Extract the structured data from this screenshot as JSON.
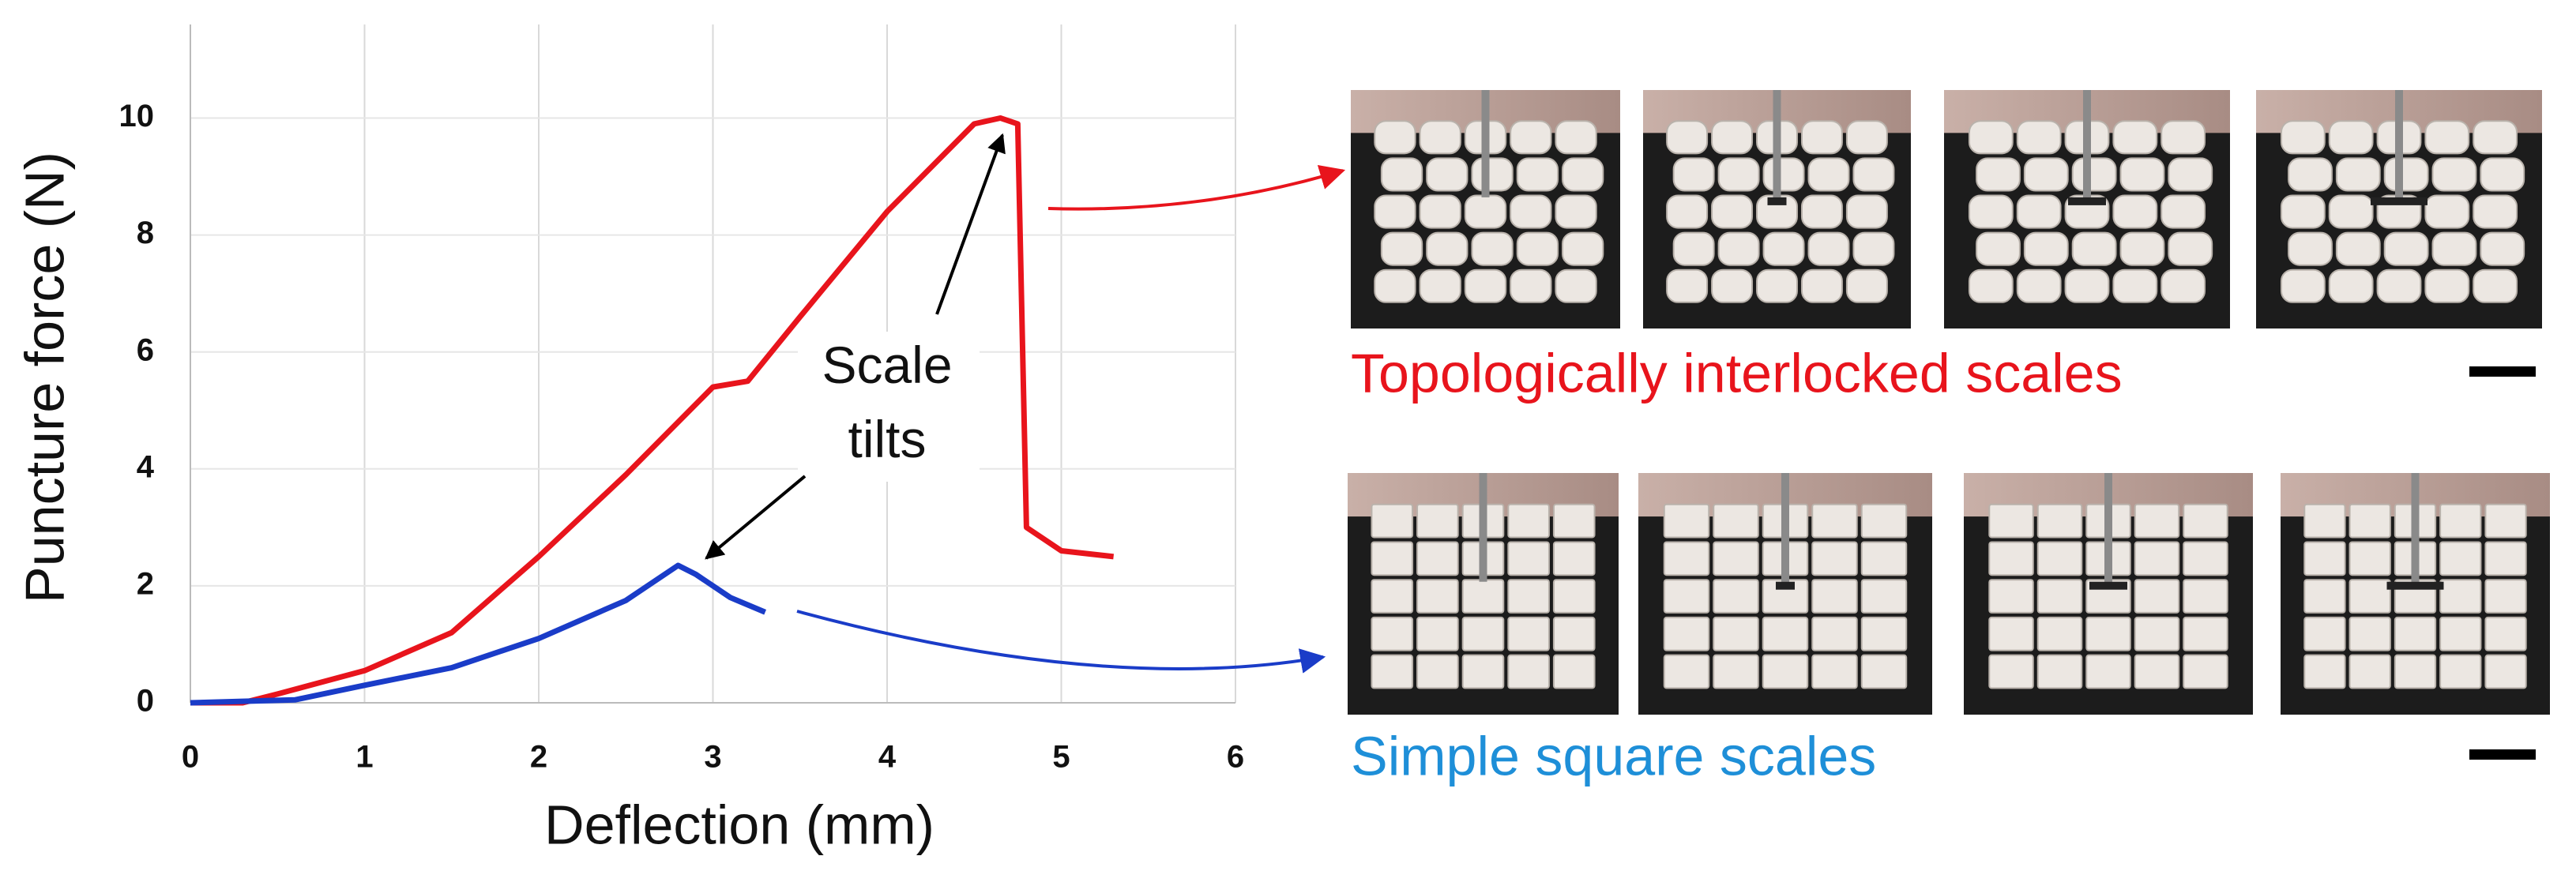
{
  "chart_data": {
    "type": "line",
    "xlabel": "Deflection (mm)",
    "ylabel": "Puncture force (N)",
    "annotation": "Scale tilts",
    "xlim": [
      0,
      6
    ],
    "ylim": [
      0,
      11.6
    ],
    "xticks": [
      0,
      1,
      2,
      3,
      4,
      5,
      6
    ],
    "yticks": [
      0,
      2,
      4,
      6,
      8,
      10
    ],
    "grid": true,
    "series": [
      {
        "name": "Topologically interlocked scales",
        "color": "#e8141c",
        "x": [
          0,
          0.3,
          0.5,
          1,
          1.5,
          2,
          2.5,
          3,
          3.2,
          3.5,
          4,
          4.5,
          4.65,
          4.75,
          4.8,
          5,
          5.3
        ],
        "values": [
          0,
          0,
          0.15,
          0.55,
          1.2,
          2.5,
          3.9,
          5.4,
          5.5,
          6.6,
          8.4,
          9.9,
          10,
          9.9,
          3,
          2.6,
          2.5
        ]
      },
      {
        "name": "Simple square scales",
        "color": "#1a3cc8",
        "x": [
          0,
          0.6,
          1,
          1.5,
          2,
          2.5,
          2.8,
          2.9,
          3.1,
          3.3
        ],
        "values": [
          0,
          0.05,
          0.3,
          0.6,
          1.1,
          1.75,
          2.35,
          2.2,
          1.8,
          1.55
        ]
      }
    ]
  }
}
